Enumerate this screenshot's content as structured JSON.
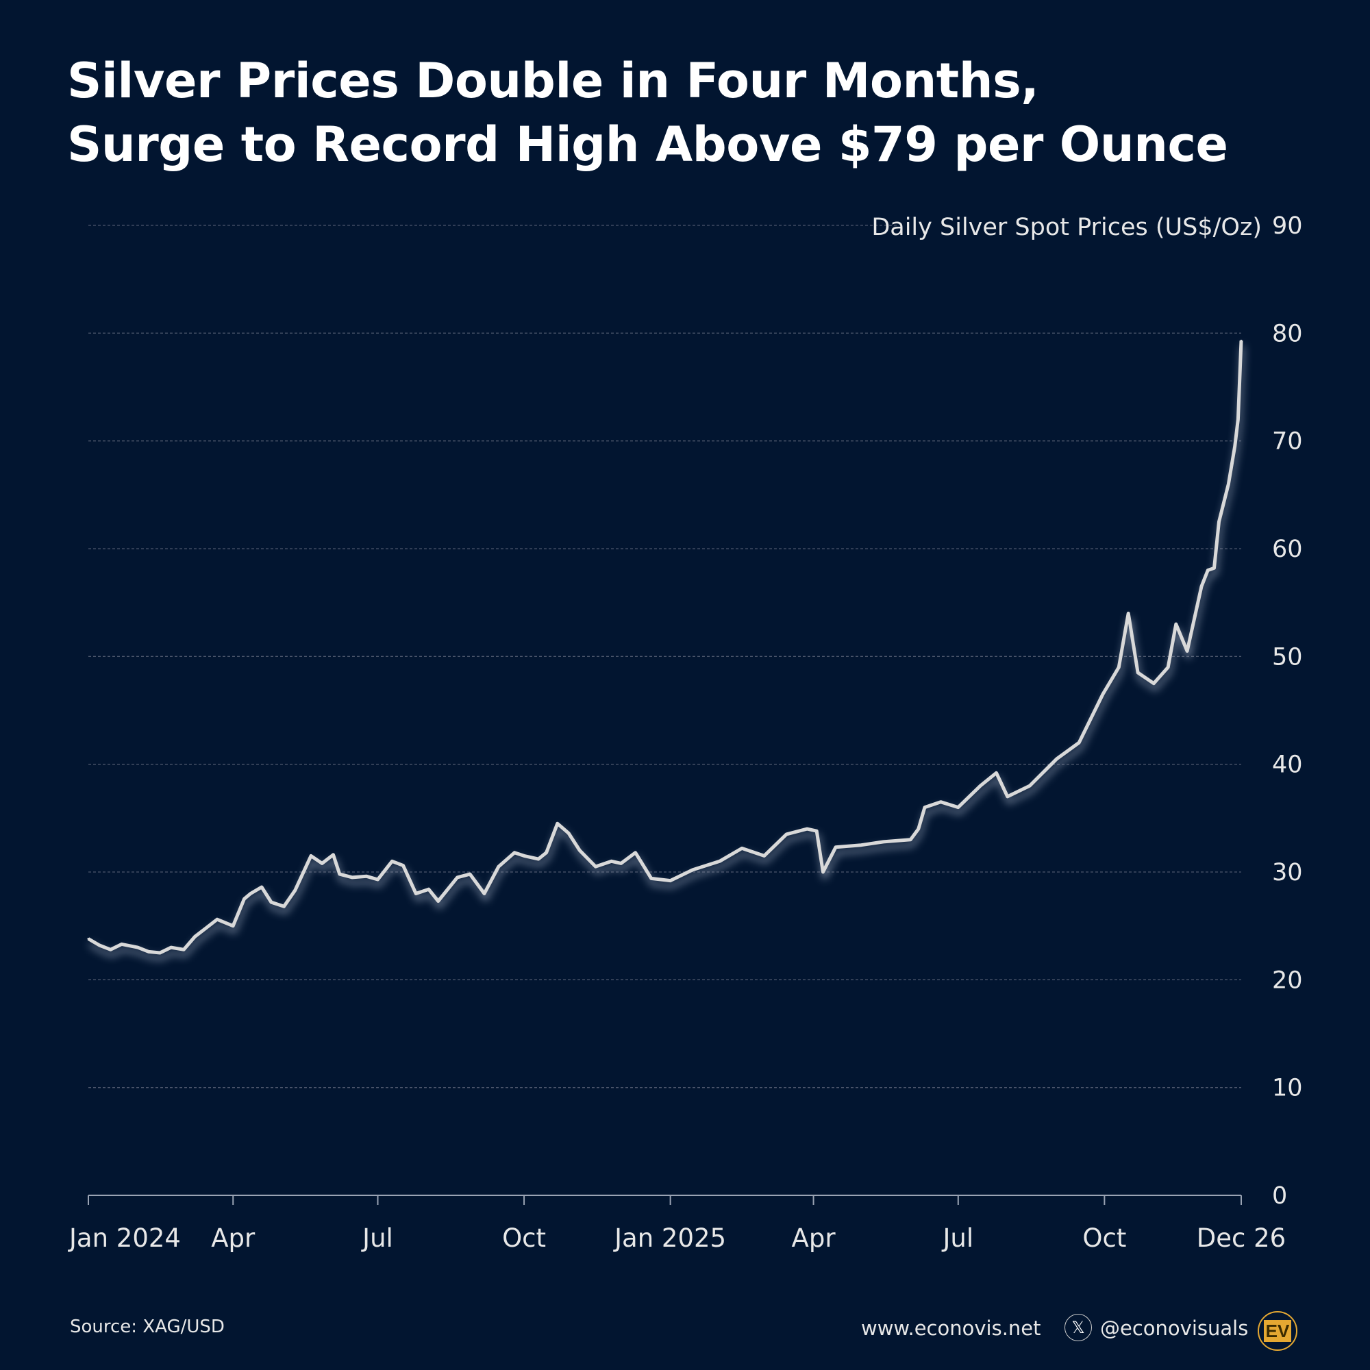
{
  "title_lines": [
    "Silver Prices Double in Four Months,",
    "Surge to Record High Above $79 per Ounce"
  ],
  "footer": {
    "source": "Source: XAG/USD",
    "website": "www.econovis.net",
    "handle": "@econovisuals",
    "x_icon": "x-logo-icon",
    "logo_text": "EV"
  },
  "colors": {
    "background": "#021530",
    "line": "#d9d9d9",
    "grid": "#5a6478",
    "logo": "#e5a832"
  },
  "chart_data": {
    "type": "line",
    "title": "Silver Prices Double in Four Months, Surge to Record High Above $79 per Ounce",
    "ylabel": "Daily Silver Spot Prices (US$/Oz)",
    "xlabel": "",
    "ylim": [
      0,
      90
    ],
    "yticks": [
      0,
      10,
      20,
      30,
      40,
      50,
      60,
      70,
      80,
      90
    ],
    "xlim": [
      "2024-01-01",
      "2025-12-26"
    ],
    "xticks": [
      {
        "date": "2024-01-01",
        "label": "Jan 2024"
      },
      {
        "date": "2024-04-01",
        "label": "Apr"
      },
      {
        "date": "2024-07-01",
        "label": "Jul"
      },
      {
        "date": "2024-10-01",
        "label": "Oct"
      },
      {
        "date": "2025-01-01",
        "label": "Jan 2025"
      },
      {
        "date": "2025-04-01",
        "label": "Apr"
      },
      {
        "date": "2025-07-01",
        "label": "Jul"
      },
      {
        "date": "2025-10-01",
        "label": "Oct"
      },
      {
        "date": "2025-12-26",
        "label": "Dec 26"
      }
    ],
    "grid": true,
    "series": [
      {
        "name": "Silver spot price",
        "x": [
          "2024-01-01",
          "2024-01-08",
          "2024-01-15",
          "2024-01-22",
          "2024-02-01",
          "2024-02-08",
          "2024-02-15",
          "2024-02-22",
          "2024-03-01",
          "2024-03-08",
          "2024-03-15",
          "2024-03-22",
          "2024-04-01",
          "2024-04-08",
          "2024-04-12",
          "2024-04-19",
          "2024-04-25",
          "2024-05-03",
          "2024-05-10",
          "2024-05-20",
          "2024-05-27",
          "2024-06-03",
          "2024-06-07",
          "2024-06-15",
          "2024-06-24",
          "2024-07-01",
          "2024-07-10",
          "2024-07-17",
          "2024-07-25",
          "2024-08-02",
          "2024-08-08",
          "2024-08-20",
          "2024-08-28",
          "2024-09-06",
          "2024-09-15",
          "2024-09-25",
          "2024-10-01",
          "2024-10-10",
          "2024-10-15",
          "2024-10-22",
          "2024-10-29",
          "2024-11-05",
          "2024-11-15",
          "2024-11-25",
          "2024-12-01",
          "2024-12-10",
          "2024-12-20",
          "2025-01-01",
          "2025-01-15",
          "2025-02-01",
          "2025-02-15",
          "2025-03-01",
          "2025-03-15",
          "2025-03-28",
          "2025-04-03",
          "2025-04-07",
          "2025-04-15",
          "2025-05-01",
          "2025-05-15",
          "2025-06-01",
          "2025-06-06",
          "2025-06-10",
          "2025-06-20",
          "2025-07-01",
          "2025-07-15",
          "2025-07-25",
          "2025-08-01",
          "2025-08-15",
          "2025-09-01",
          "2025-09-15",
          "2025-09-30",
          "2025-10-10",
          "2025-10-16",
          "2025-10-22",
          "2025-11-01",
          "2025-11-10",
          "2025-11-15",
          "2025-11-22",
          "2025-12-01",
          "2025-12-05",
          "2025-12-09",
          "2025-12-12",
          "2025-12-18",
          "2025-12-22",
          "2025-12-24",
          "2025-12-26"
        ],
        "values": [
          23.8,
          23.2,
          22.8,
          23.3,
          23.0,
          22.6,
          22.5,
          23.0,
          22.8,
          24.0,
          24.8,
          25.6,
          25.0,
          27.5,
          28.0,
          28.6,
          27.2,
          26.8,
          28.3,
          31.5,
          30.8,
          31.6,
          29.8,
          29.5,
          29.6,
          29.3,
          31.0,
          30.6,
          28.0,
          28.4,
          27.3,
          29.5,
          29.8,
          28.0,
          30.5,
          31.8,
          31.5,
          31.2,
          31.8,
          34.5,
          33.6,
          32.0,
          30.5,
          31.0,
          30.8,
          31.8,
          29.4,
          29.2,
          30.2,
          31.0,
          32.2,
          31.5,
          33.5,
          34.0,
          33.8,
          30.0,
          32.3,
          32.5,
          32.8,
          33.0,
          34.0,
          36.0,
          36.5,
          36.0,
          38.0,
          39.2,
          37.0,
          38.0,
          40.5,
          42.0,
          46.5,
          49.0,
          54.0,
          48.5,
          47.5,
          49.0,
          53.0,
          50.5,
          56.5,
          58.0,
          58.2,
          62.5,
          66.0,
          69.5,
          72.0,
          79.3
        ]
      }
    ]
  }
}
